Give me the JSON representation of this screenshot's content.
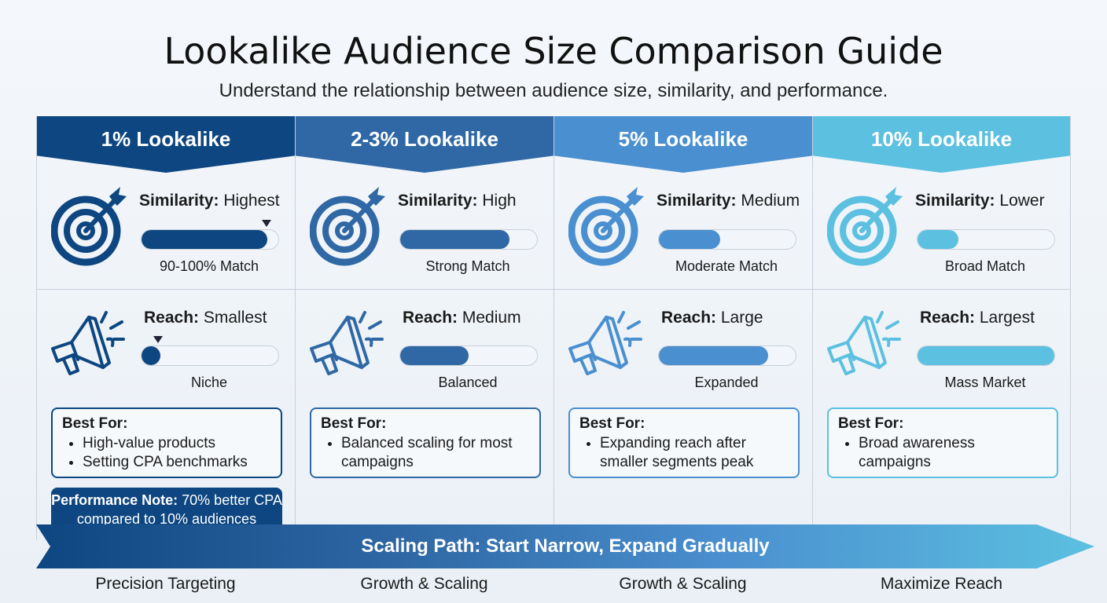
{
  "title": "Lookalike Audience Size Comparison Guide",
  "subtitle": "Understand the relationship between audience size, similarity, and performance.",
  "columns": [
    {
      "header": "1% Lookalike",
      "color": "#0d4680",
      "similarity_label": "Similarity:",
      "similarity": "Highest",
      "similarity_level": 0.92,
      "similarity_marker": true,
      "similarity_caption": "90-100% Match",
      "reach_label": "Reach:",
      "reach": "Smallest",
      "reach_level": 0.1,
      "reach_marker": true,
      "reach_caption": "Niche",
      "best_for_title": "Best For:",
      "best_for": [
        "High-value products",
        "Setting CPA benchmarks"
      ],
      "note_label": "Performance Note:",
      "note_text": " 70% better CPA compared to 10% audiences"
    },
    {
      "header": "2-3% Lookalike",
      "color": "#2f68a5",
      "similarity_label": "Similarity:",
      "similarity": "High",
      "similarity_level": 0.8,
      "similarity_caption": "Strong Match",
      "reach_label": "Reach:",
      "reach": "Medium",
      "reach_level": 0.5,
      "reach_caption": "Balanced",
      "best_for_title": "Best For:",
      "best_for": [
        "Balanced scaling for most campaigns"
      ]
    },
    {
      "header": "5% Lookalike",
      "color": "#4a8fcf",
      "similarity_label": "Similarity:",
      "similarity": "Medium",
      "similarity_level": 0.45,
      "similarity_caption": "Moderate Match",
      "reach_label": "Reach:",
      "reach": "Large",
      "reach_level": 0.8,
      "reach_caption": "Expanded",
      "best_for_title": "Best For:",
      "best_for": [
        "Expanding reach after smaller segments peak"
      ]
    },
    {
      "header": "10% Lookalike",
      "color": "#5cc0e0",
      "similarity_label": "Similarity:",
      "similarity": "Lower",
      "similarity_level": 0.3,
      "similarity_caption": "Broad Match",
      "reach_label": "Reach:",
      "reach": "Largest",
      "reach_level": 1.0,
      "reach_caption": "Mass Market",
      "best_for_title": "Best For:",
      "best_for": [
        "Broad awareness campaigns"
      ]
    }
  ],
  "icons": {
    "similarity": "target-icon",
    "reach": "megaphone-icon"
  },
  "scaling_path": "Scaling Path: Start Narrow, Expand Gradually",
  "stages": [
    "Precision Targeting",
    "Growth & Scaling",
    "Growth & Scaling",
    "Maximize Reach"
  ]
}
